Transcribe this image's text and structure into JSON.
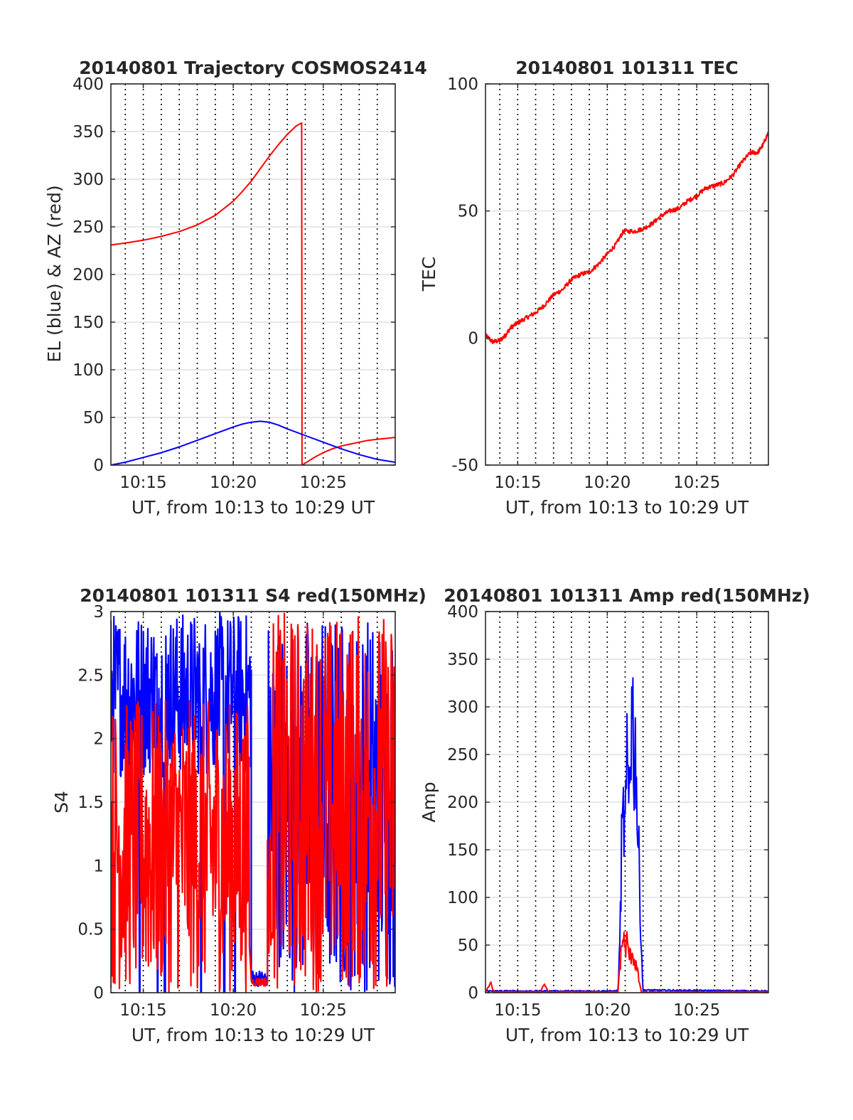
{
  "colors": {
    "blue": "#0000ff",
    "red": "#ff0000",
    "grid": "#d9d9d9",
    "vgrid": "#000000",
    "axis": "#262626"
  },
  "chart_data": [
    {
      "id": "traj",
      "type": "line",
      "title": "20140801 Trajectory COSMOS2414",
      "xlabel": "UT, from 10:13 to 10:29 UT",
      "ylabel": "EL (blue) & AZ (red)",
      "xlim": [
        13.2,
        29.0
      ],
      "ylim": [
        0,
        400
      ],
      "x_ticks": [
        15,
        20,
        25
      ],
      "x_tick_labels": [
        "10:15",
        "10:20",
        "10:25"
      ],
      "y_ticks": [
        0,
        50,
        100,
        150,
        200,
        250,
        300,
        350,
        400
      ],
      "y_tick_labels": [
        "0",
        "50",
        "100",
        "150",
        "200",
        "250",
        "300",
        "350",
        "400"
      ],
      "grid": {
        "horizontal": "solid light",
        "vertical": "dotted dark",
        "x_minutes": [
          14,
          15,
          16,
          17,
          18,
          19,
          20,
          21,
          22,
          23,
          24,
          25,
          26,
          27,
          28
        ]
      },
      "series": [
        {
          "color": "red",
          "style": "line",
          "points": [
            [
              13.2,
              231
            ],
            [
              14.0,
              233
            ],
            [
              15.0,
              236
            ],
            [
              16.0,
              240
            ],
            [
              17.0,
              245
            ],
            [
              18.0,
              252
            ],
            [
              19.0,
              262
            ],
            [
              20.0,
              277
            ],
            [
              20.5,
              287
            ],
            [
              21.0,
              298
            ],
            [
              21.5,
              311
            ],
            [
              22.0,
              324
            ],
            [
              22.5,
              336
            ],
            [
              23.0,
              347
            ],
            [
              23.5,
              356
            ],
            [
              23.8,
              359
            ],
            [
              23.82,
              0
            ],
            [
              24.0,
              2
            ],
            [
              24.5,
              8
            ],
            [
              25.0,
              13
            ],
            [
              25.5,
              17
            ],
            [
              26.0,
              20
            ],
            [
              26.5,
              22
            ],
            [
              27.0,
              24
            ],
            [
              27.5,
              26
            ],
            [
              28.0,
              27
            ],
            [
              28.5,
              28
            ],
            [
              29.0,
              29
            ]
          ]
        },
        {
          "color": "blue",
          "style": "line",
          "points": [
            [
              13.2,
              0
            ],
            [
              14.0,
              3
            ],
            [
              15.0,
              8
            ],
            [
              16.0,
              13
            ],
            [
              17.0,
              19
            ],
            [
              18.0,
              26
            ],
            [
              19.0,
              33
            ],
            [
              20.0,
              40
            ],
            [
              20.5,
              43
            ],
            [
              21.0,
              45
            ],
            [
              21.5,
              46
            ],
            [
              22.0,
              45
            ],
            [
              22.5,
              42
            ],
            [
              23.0,
              38
            ],
            [
              24.0,
              31
            ],
            [
              25.0,
              24
            ],
            [
              26.0,
              17
            ],
            [
              27.0,
              11
            ],
            [
              28.0,
              6
            ],
            [
              29.0,
              3
            ]
          ]
        }
      ]
    },
    {
      "id": "tec",
      "type": "line",
      "title": "20140801 101311 TEC",
      "xlabel": "UT, from 10:13 to 10:29 UT",
      "ylabel": "TEC",
      "xlim": [
        13.2,
        29.0
      ],
      "ylim": [
        -50,
        100
      ],
      "x_ticks": [
        15,
        20,
        25
      ],
      "x_tick_labels": [
        "10:15",
        "10:20",
        "10:25"
      ],
      "y_ticks": [
        -50,
        0,
        50,
        100
      ],
      "y_tick_labels": [
        "-50",
        "0",
        "50",
        "100"
      ],
      "grid": {
        "horizontal": "solid light",
        "vertical": "dotted dark",
        "x_minutes": [
          14,
          15,
          16,
          17,
          18,
          19,
          20,
          21,
          22,
          23,
          24,
          25,
          26,
          27,
          28
        ]
      },
      "series": [
        {
          "color": "red",
          "style": "noisy-line",
          "points": [
            [
              13.2,
              1
            ],
            [
              13.6,
              -1.5
            ],
            [
              14.0,
              -1
            ],
            [
              14.3,
              1
            ],
            [
              14.6,
              4
            ],
            [
              15.0,
              6
            ],
            [
              15.5,
              8
            ],
            [
              16.0,
              10
            ],
            [
              16.5,
              13
            ],
            [
              17.0,
              17
            ],
            [
              17.5,
              19
            ],
            [
              18.0,
              23
            ],
            [
              18.5,
              25
            ],
            [
              19.0,
              26
            ],
            [
              19.5,
              29
            ],
            [
              20.0,
              33
            ],
            [
              20.5,
              37
            ],
            [
              20.9,
              42
            ],
            [
              21.5,
              42
            ],
            [
              22.0,
              43
            ],
            [
              22.5,
              45
            ],
            [
              23.0,
              48
            ],
            [
              23.5,
              50
            ],
            [
              24.0,
              51
            ],
            [
              24.5,
              54
            ],
            [
              25.0,
              56
            ],
            [
              25.5,
              59
            ],
            [
              26.0,
              60
            ],
            [
              26.5,
              61
            ],
            [
              27.0,
              64
            ],
            [
              27.5,
              69
            ],
            [
              28.0,
              73
            ],
            [
              28.4,
              73
            ],
            [
              28.7,
              76
            ],
            [
              29.0,
              81
            ]
          ]
        }
      ]
    },
    {
      "id": "s4",
      "type": "line",
      "title": "20140801 101311 S4 red(150MHz)",
      "xlabel": "UT, from 10:13 to 10:29 UT",
      "ylabel": "S4",
      "xlim": [
        13.2,
        29.0
      ],
      "ylim": [
        0,
        3
      ],
      "x_ticks": [
        15,
        20,
        25
      ],
      "x_tick_labels": [
        "10:15",
        "10:20",
        "10:25"
      ],
      "y_ticks": [
        0,
        0.5,
        1,
        1.5,
        2,
        2.5,
        3
      ],
      "y_tick_labels": [
        "0",
        "0.5",
        "1",
        "1.5",
        "2",
        "2.5",
        "3"
      ],
      "grid": {
        "horizontal": "solid light",
        "vertical": "dotted dark",
        "x_minutes": [
          14,
          15,
          16,
          17,
          18,
          19,
          20,
          21,
          22,
          23,
          24,
          25,
          26,
          27,
          28
        ]
      },
      "series": [
        {
          "color": "blue",
          "style": "dense-noise",
          "segments": [
            {
              "x0": 13.2,
              "x1": 21.0,
              "low": 1.7,
              "high": 3.0,
              "dropouts": [
                14.8,
                15.8,
                16.2,
                18.2,
                19.5,
                20.1
              ]
            },
            {
              "x0": 21.0,
              "x1": 21.9,
              "low": 0.05,
              "high": 0.18,
              "dropouts": []
            },
            {
              "x0": 21.9,
              "x1": 22.7,
              "low": 0.2,
              "high": 3.0,
              "dropouts": []
            },
            {
              "x0": 22.7,
              "x1": 29.0,
              "low": 0.0,
              "high": 3.0,
              "dropouts": []
            }
          ]
        },
        {
          "color": "red",
          "style": "dense-noise",
          "segments": [
            {
              "x0": 13.2,
              "x1": 20.9,
              "low": 0.0,
              "high": 2.3,
              "dropouts": []
            },
            {
              "x0": 21.0,
              "x1": 21.9,
              "low": 0.05,
              "high": 0.12,
              "dropouts": []
            },
            {
              "x0": 21.9,
              "x1": 22.2,
              "low": 0.3,
              "high": 1.3,
              "dropouts": []
            },
            {
              "x0": 22.2,
              "x1": 29.0,
              "low": 0.0,
              "high": 3.0,
              "dropouts": []
            }
          ]
        }
      ]
    },
    {
      "id": "amp",
      "type": "line",
      "title": "20140801 101311 Amp red(150MHz)",
      "xlabel": "UT, from 10:13 to 10:29 UT",
      "ylabel": "Amp",
      "xlim": [
        13.2,
        29.0
      ],
      "ylim": [
        0,
        400
      ],
      "x_ticks": [
        15,
        20,
        25
      ],
      "x_tick_labels": [
        "10:15",
        "10:20",
        "10:25"
      ],
      "y_ticks": [
        0,
        50,
        100,
        150,
        200,
        250,
        300,
        350,
        400
      ],
      "y_tick_labels": [
        "0",
        "50",
        "100",
        "150",
        "200",
        "250",
        "300",
        "350",
        "400"
      ],
      "grid": {
        "horizontal": "solid light",
        "vertical": "dotted dark",
        "x_minutes": [
          14,
          15,
          16,
          17,
          18,
          19,
          20,
          21,
          22,
          23,
          24,
          25,
          26,
          27,
          28
        ]
      },
      "series": [
        {
          "color": "blue",
          "style": "spiky",
          "points": [
            [
              13.2,
              1
            ],
            [
              20.5,
              1
            ],
            [
              20.6,
              3
            ],
            [
              20.7,
              60
            ],
            [
              20.8,
              180
            ],
            [
              20.9,
              220
            ],
            [
              21.0,
              200
            ],
            [
              21.1,
              280
            ],
            [
              21.2,
              250
            ],
            [
              21.3,
              330
            ],
            [
              21.4,
              370
            ],
            [
              21.5,
              300
            ],
            [
              21.6,
              310
            ],
            [
              21.7,
              200
            ],
            [
              21.8,
              150
            ],
            [
              21.9,
              60
            ],
            [
              22.0,
              2
            ],
            [
              29.0,
              1
            ]
          ]
        },
        {
          "color": "red",
          "style": "spiky",
          "points": [
            [
              13.2,
              0
            ],
            [
              13.4,
              6
            ],
            [
              13.5,
              10
            ],
            [
              13.6,
              3
            ],
            [
              13.7,
              0
            ],
            [
              16.3,
              0
            ],
            [
              16.4,
              6
            ],
            [
              16.5,
              8
            ],
            [
              16.6,
              4
            ],
            [
              16.7,
              0
            ],
            [
              20.6,
              0
            ],
            [
              20.7,
              30
            ],
            [
              20.8,
              60
            ],
            [
              20.9,
              70
            ],
            [
              21.0,
              55
            ],
            [
              21.1,
              65
            ],
            [
              21.2,
              50
            ],
            [
              21.3,
              45
            ],
            [
              21.4,
              55
            ],
            [
              21.5,
              40
            ],
            [
              21.6,
              35
            ],
            [
              21.7,
              25
            ],
            [
              21.8,
              10
            ],
            [
              21.9,
              0
            ],
            [
              29.0,
              0
            ]
          ]
        }
      ]
    }
  ]
}
